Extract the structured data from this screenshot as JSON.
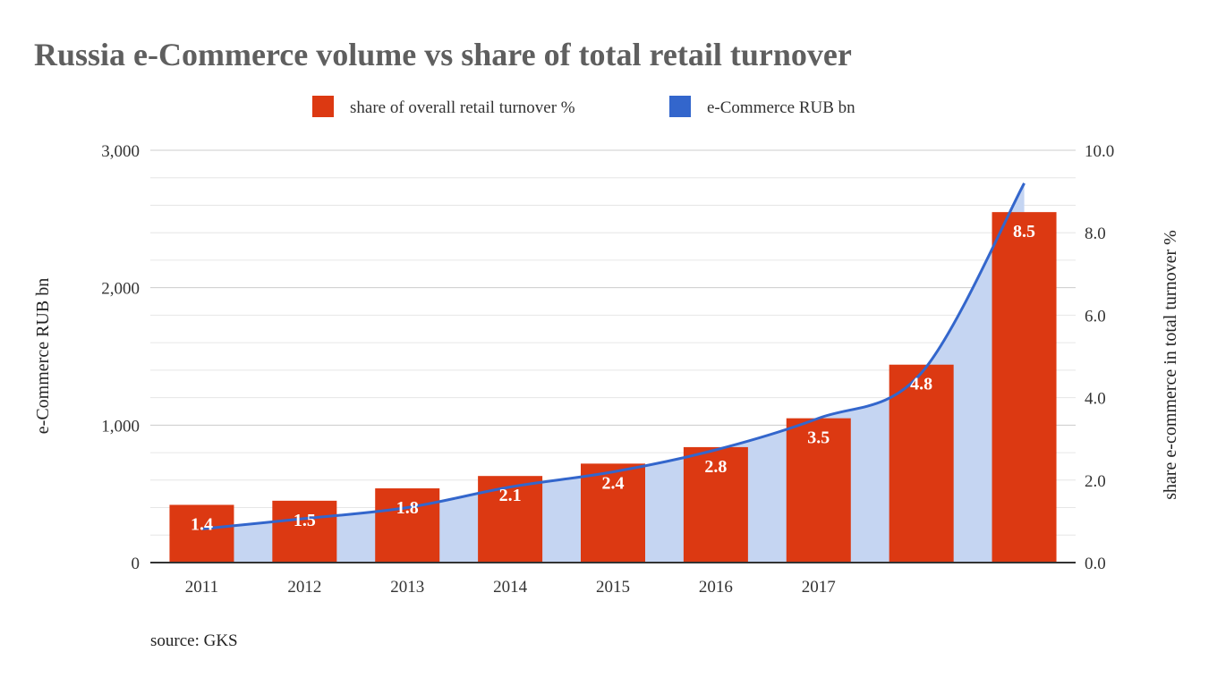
{
  "chart_data": {
    "type": "bar",
    "title": "Russia e-Commerce volume vs share of total retail turnover",
    "categories": [
      "2011",
      "2012",
      "2013",
      "2014",
      "2015",
      "2016",
      "2017",
      "",
      ""
    ],
    "series": [
      {
        "name": "share of overall retail turnover %",
        "type": "bar",
        "axis": "right",
        "color": "#dc3912",
        "values": [
          1.4,
          1.5,
          1.8,
          2.1,
          2.4,
          2.8,
          3.5,
          4.8,
          8.5
        ]
      },
      {
        "name": "e-Commerce RUB bn",
        "type": "area",
        "axis": "left",
        "color": "#3366cc",
        "values": [
          245,
          320,
          400,
          550,
          660,
          820,
          1050,
          1380,
          2760
        ]
      }
    ],
    "ylabel": "e-Commerce RUB bn",
    "y2label": "share e-commerce in total turnover %",
    "ylim": [
      0,
      3000
    ],
    "y2lim": [
      0,
      10
    ],
    "yticks": [
      "0",
      "1,000",
      "2,000",
      "3,000"
    ],
    "y2ticks": [
      "0.0",
      "2.0",
      "4.0",
      "6.0",
      "8.0",
      "10.0"
    ],
    "grid": true,
    "legend_position": "top"
  },
  "source": "source: GKS"
}
